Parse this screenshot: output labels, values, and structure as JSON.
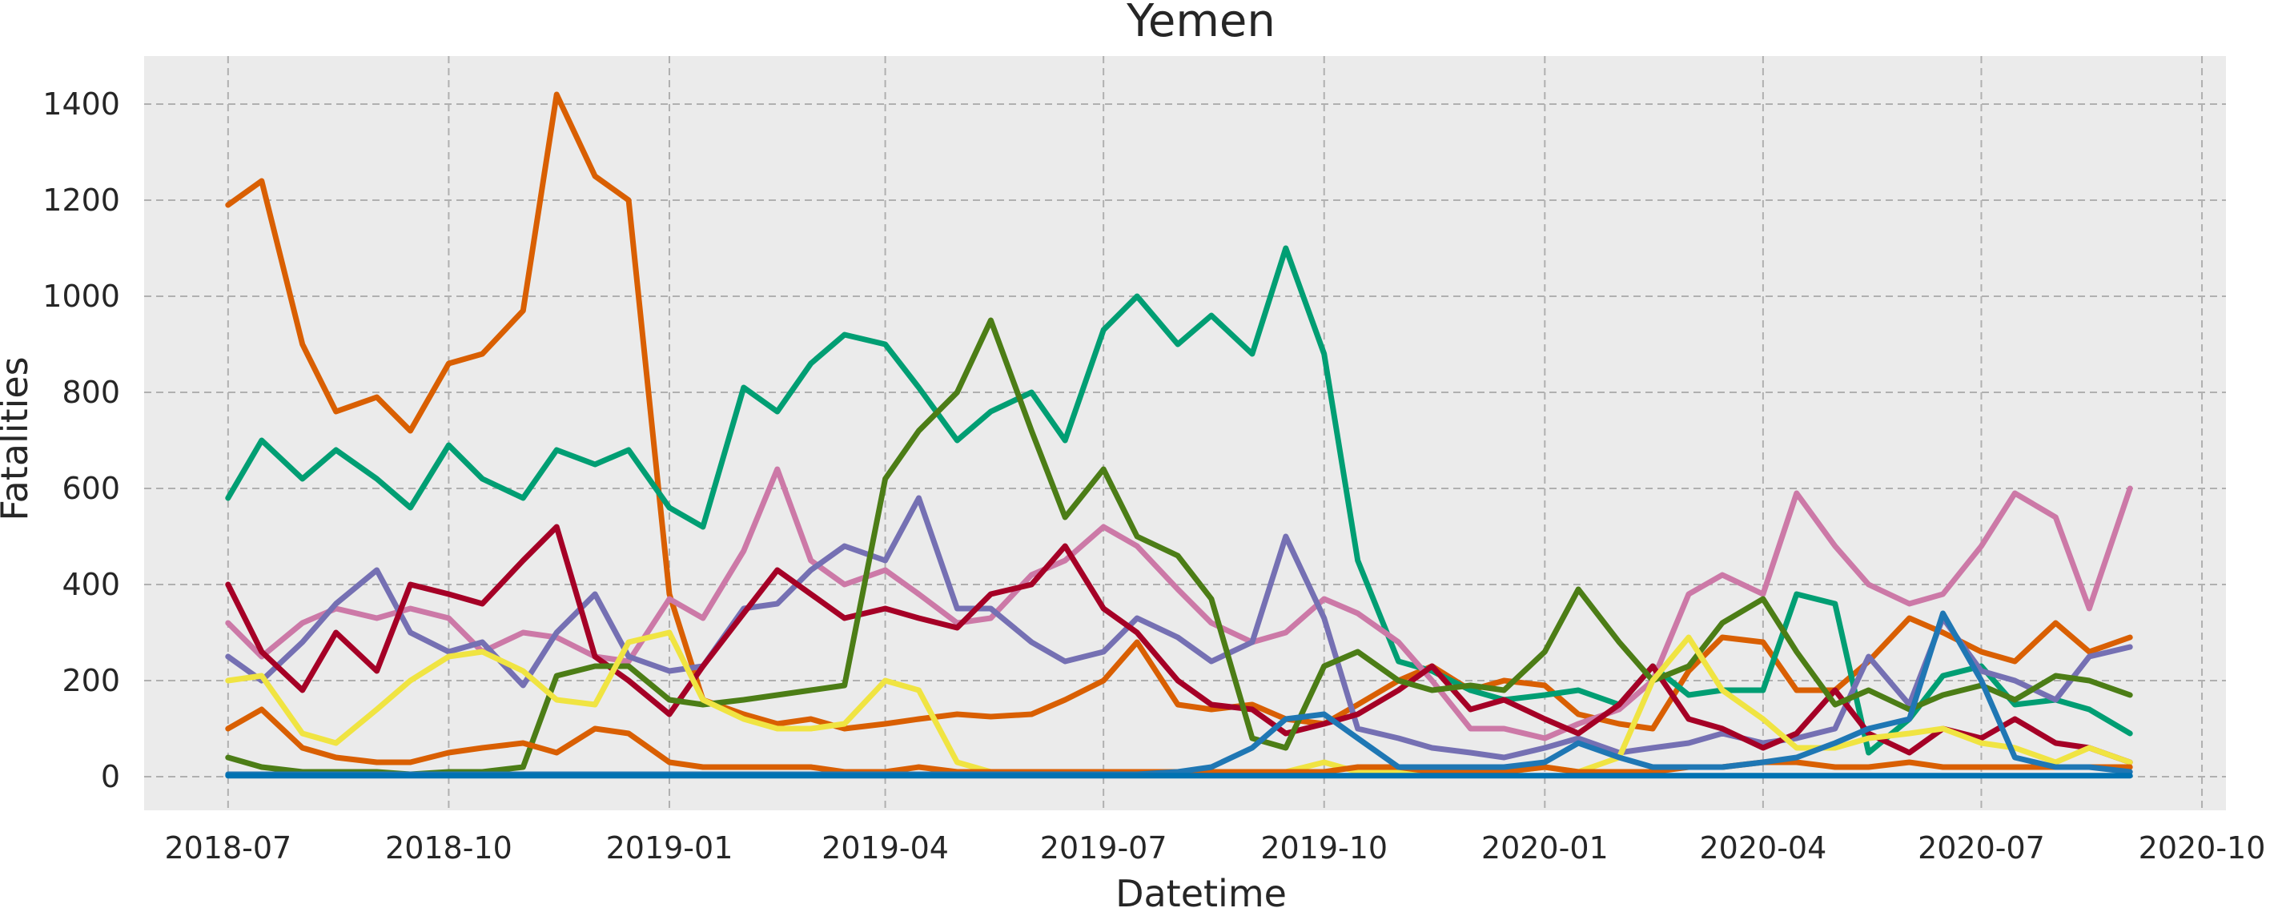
{
  "chart_data": {
    "type": "line",
    "title": "Yemen",
    "xlabel": "Datetime",
    "ylabel": "Fatalities",
    "x_ticks": [
      "2018-07",
      "2018-10",
      "2019-01",
      "2019-04",
      "2019-07",
      "2019-10",
      "2020-01",
      "2020-04",
      "2020-07",
      "2020-10"
    ],
    "y_ticks": [
      0,
      200,
      400,
      600,
      800,
      1000,
      1200,
      1400
    ],
    "xlim": [
      "2018-05-27",
      "2020-10-11"
    ],
    "ylim": [
      -70,
      1500
    ],
    "grid": true,
    "legend": "none",
    "x": [
      "2018-07-01",
      "2018-07-15",
      "2018-08-01",
      "2018-08-15",
      "2018-09-01",
      "2018-09-15",
      "2018-10-01",
      "2018-10-15",
      "2018-11-01",
      "2018-11-15",
      "2018-12-01",
      "2018-12-15",
      "2019-01-01",
      "2019-01-15",
      "2019-02-01",
      "2019-02-15",
      "2019-03-01",
      "2019-03-15",
      "2019-04-01",
      "2019-04-15",
      "2019-05-01",
      "2019-05-15",
      "2019-06-01",
      "2019-06-15",
      "2019-07-01",
      "2019-07-15",
      "2019-08-01",
      "2019-08-15",
      "2019-09-01",
      "2019-09-15",
      "2019-10-01",
      "2019-10-15",
      "2019-11-01",
      "2019-11-15",
      "2019-12-01",
      "2019-12-15",
      "2020-01-01",
      "2020-01-15",
      "2020-02-01",
      "2020-02-15",
      "2020-03-01",
      "2020-03-15",
      "2020-04-01",
      "2020-04-15",
      "2020-05-01",
      "2020-05-15",
      "2020-06-01",
      "2020-06-15",
      "2020-07-01",
      "2020-07-15",
      "2020-08-01",
      "2020-08-15",
      "2020-09-01"
    ],
    "series": [
      {
        "color": "#d95f02",
        "values": [
          1190,
          1240,
          900,
          760,
          790,
          720,
          860,
          880,
          970,
          1420,
          1250,
          1200,
          380,
          160,
          130,
          110,
          120,
          100,
          110,
          120,
          130,
          125,
          130,
          160,
          200,
          280,
          150,
          140,
          150,
          120,
          110,
          150,
          200,
          230,
          180,
          200,
          190,
          130,
          110,
          100,
          220,
          290,
          280,
          180,
          180,
          240,
          330,
          300,
          260,
          240,
          320,
          260,
          290
        ]
      },
      {
        "color": "#009e73",
        "values": [
          580,
          700,
          620,
          680,
          620,
          560,
          690,
          620,
          580,
          680,
          650,
          680,
          560,
          520,
          810,
          760,
          860,
          920,
          900,
          810,
          700,
          760,
          800,
          700,
          930,
          1000,
          900,
          960,
          880,
          1100,
          880,
          450,
          240,
          220,
          180,
          160,
          170,
          180,
          150,
          230,
          170,
          180,
          180,
          380,
          360,
          50,
          120,
          210,
          230,
          150,
          160,
          140,
          90
        ]
      },
      {
        "color": "#cc79a7",
        "values": [
          320,
          250,
          320,
          350,
          330,
          350,
          330,
          260,
          300,
          290,
          250,
          240,
          370,
          330,
          470,
          640,
          450,
          400,
          430,
          380,
          320,
          330,
          420,
          450,
          520,
          480,
          390,
          320,
          280,
          300,
          370,
          340,
          280,
          200,
          100,
          100,
          80,
          110,
          140,
          200,
          380,
          420,
          380,
          590,
          480,
          400,
          360,
          380,
          480,
          590,
          540,
          350,
          600
        ]
      },
      {
        "color": "#7570b3",
        "values": [
          250,
          200,
          280,
          360,
          430,
          300,
          260,
          280,
          190,
          300,
          380,
          250,
          220,
          230,
          350,
          360,
          430,
          480,
          450,
          580,
          350,
          350,
          280,
          240,
          260,
          330,
          290,
          240,
          280,
          500,
          330,
          100,
          80,
          60,
          50,
          40,
          60,
          80,
          50,
          60,
          70,
          90,
          70,
          80,
          100,
          250,
          150,
          330,
          220,
          200,
          160,
          250,
          270
        ]
      },
      {
        "color": "#a50026",
        "values": [
          400,
          260,
          180,
          300,
          220,
          400,
          380,
          360,
          450,
          520,
          250,
          200,
          130,
          230,
          340,
          430,
          380,
          330,
          350,
          330,
          310,
          380,
          400,
          480,
          350,
          300,
          200,
          150,
          140,
          90,
          110,
          130,
          180,
          230,
          140,
          160,
          120,
          90,
          150,
          230,
          120,
          100,
          60,
          90,
          180,
          90,
          50,
          100,
          80,
          120,
          70,
          60,
          30
        ]
      },
      {
        "color": "#4c7d16",
        "values": [
          40,
          20,
          10,
          10,
          10,
          5,
          10,
          10,
          20,
          210,
          230,
          230,
          160,
          150,
          160,
          170,
          180,
          190,
          620,
          720,
          800,
          950,
          720,
          540,
          640,
          500,
          460,
          370,
          80,
          60,
          230,
          260,
          200,
          180,
          190,
          180,
          260,
          390,
          280,
          200,
          230,
          320,
          370,
          260,
          150,
          180,
          140,
          170,
          190,
          160,
          210,
          200,
          170
        ]
      },
      {
        "color": "#f0e442",
        "values": [
          200,
          210,
          90,
          70,
          140,
          200,
          250,
          260,
          220,
          160,
          150,
          280,
          300,
          160,
          120,
          100,
          100,
          110,
          200,
          180,
          30,
          10,
          10,
          10,
          10,
          10,
          10,
          10,
          10,
          10,
          30,
          10,
          10,
          10,
          10,
          10,
          20,
          10,
          40,
          200,
          290,
          180,
          120,
          60,
          60,
          80,
          90,
          100,
          70,
          60,
          30,
          60,
          30
        ]
      },
      {
        "color": "#d95f02",
        "values": [
          100,
          140,
          60,
          40,
          30,
          30,
          50,
          60,
          70,
          50,
          100,
          90,
          30,
          20,
          20,
          20,
          20,
          10,
          10,
          20,
          10,
          10,
          10,
          10,
          10,
          10,
          10,
          10,
          10,
          10,
          10,
          20,
          20,
          10,
          10,
          10,
          20,
          10,
          10,
          10,
          20,
          20,
          30,
          30,
          20,
          20,
          30,
          20,
          20,
          20,
          20,
          20,
          20
        ]
      },
      {
        "color": "#1f77b4",
        "values": [
          5,
          5,
          5,
          5,
          5,
          5,
          5,
          5,
          5,
          5,
          5,
          5,
          5,
          5,
          5,
          5,
          5,
          5,
          5,
          5,
          5,
          5,
          5,
          5,
          5,
          5,
          10,
          20,
          60,
          120,
          130,
          80,
          20,
          20,
          20,
          20,
          30,
          70,
          40,
          20,
          20,
          20,
          30,
          40,
          70,
          100,
          120,
          340,
          200,
          40,
          20,
          20,
          10
        ]
      },
      {
        "color": "#0072b2",
        "values": [
          2,
          2,
          2,
          2,
          2,
          2,
          2,
          2,
          2,
          2,
          2,
          2,
          2,
          2,
          2,
          2,
          2,
          2,
          2,
          2,
          2,
          2,
          2,
          2,
          2,
          2,
          2,
          2,
          2,
          2,
          2,
          2,
          2,
          2,
          2,
          2,
          2,
          2,
          2,
          2,
          2,
          2,
          2,
          2,
          2,
          2,
          2,
          2,
          2,
          2,
          2,
          2,
          2
        ]
      }
    ]
  }
}
